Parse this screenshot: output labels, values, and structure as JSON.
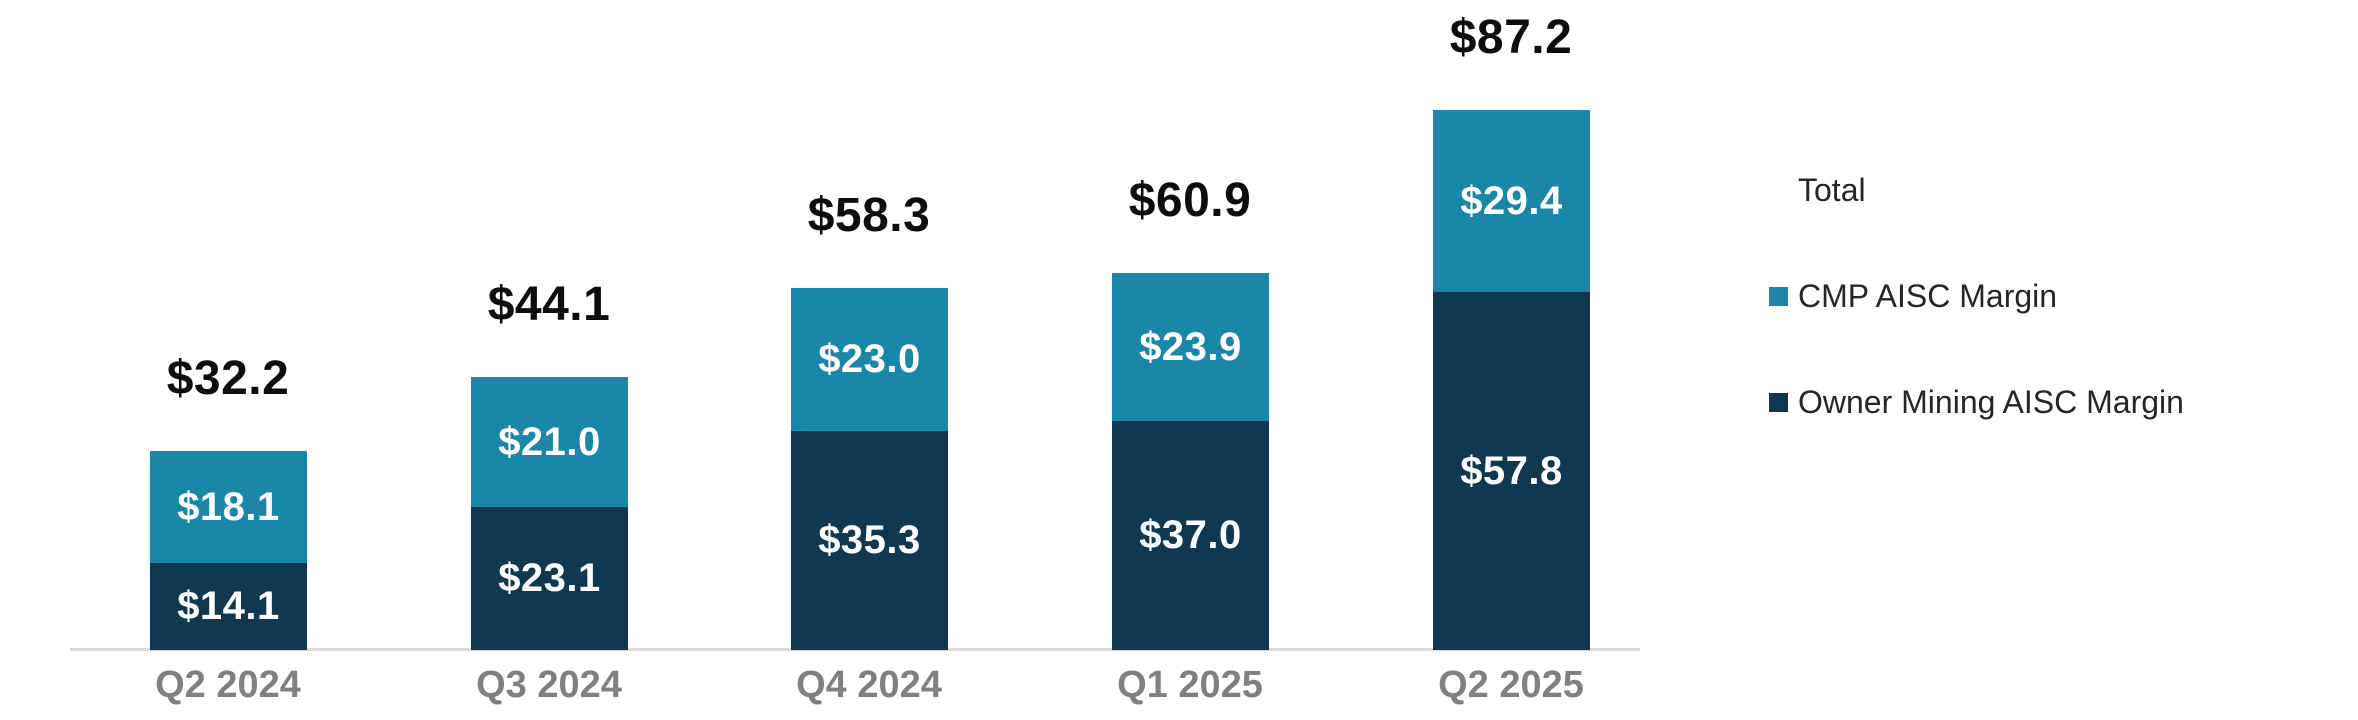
{
  "chart_data": {
    "type": "bar",
    "subtype": "stacked-column",
    "categories": [
      "Q2 2024",
      "Q3 2024",
      "Q4 2024",
      "Q1 2025",
      "Q2 2025"
    ],
    "series": [
      {
        "name": "Owner Mining AISC Margin",
        "color": "#103850",
        "values": [
          14.1,
          23.1,
          35.3,
          37.0,
          57.8
        ],
        "labels": [
          "$14.1",
          "$23.1",
          "$35.3",
          "$37.0",
          "$57.8"
        ]
      },
      {
        "name": "CMP AISC Margin",
        "color": "#1A86A8",
        "values": [
          18.1,
          21.0,
          23.0,
          23.9,
          29.4
        ],
        "labels": [
          "$18.1",
          "$21.0",
          "$23.0",
          "$23.9",
          "$29.4"
        ]
      }
    ],
    "totals": {
      "name": "Total",
      "values": [
        32.2,
        44.1,
        58.3,
        60.9,
        87.2
      ],
      "labels": [
        "$32.2",
        "$44.1",
        "$58.3",
        "$60.9",
        "$87.2"
      ]
    },
    "value_prefix": "$",
    "ylim": [
      0,
      90
    ],
    "grid": false,
    "legend": {
      "position": "right",
      "entries": [
        {
          "label": "Total",
          "swatch": null
        },
        {
          "label": "CMP AISC Margin",
          "swatch": "#1A86A8"
        },
        {
          "label": "Owner Mining AISC Margin",
          "swatch": "#103850"
        }
      ]
    }
  },
  "colors": {
    "background": "#FFFFFF",
    "axis_line": "#D9D9D9",
    "category_label": "#808080",
    "total_label": "#0D0D0D",
    "data_label": "#FFFFFF",
    "legend_text": "#262626",
    "cmp_blue": "#1A86A8",
    "owner_navy": "#103850"
  }
}
